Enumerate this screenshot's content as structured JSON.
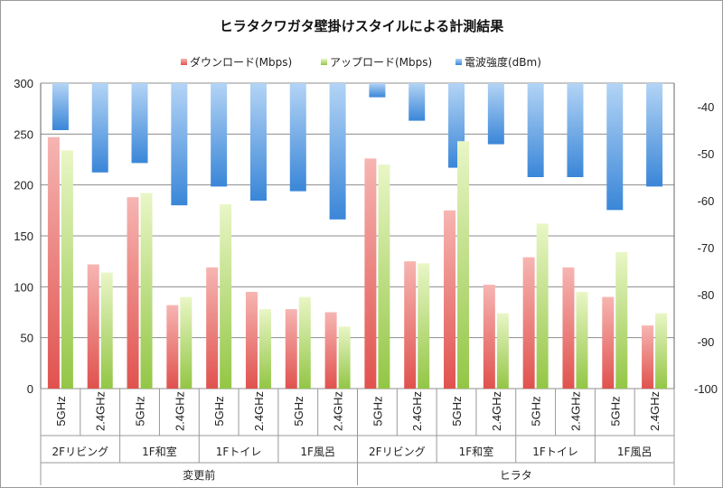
{
  "chart_data": {
    "type": "bar",
    "title": "ヒラタクワガタ壁掛けスタイルによる計測結果",
    "groups": [
      "変更前",
      "ヒラタ"
    ],
    "locations": [
      "2Fリビング",
      "1F和室",
      "1Fトイレ",
      "1F風呂"
    ],
    "bands": [
      "5GHz",
      "2.4GHz"
    ],
    "categories": [
      "5GHz",
      "2.4GHz",
      "5GHz",
      "2.4GHz",
      "5GHz",
      "2.4GHz",
      "5GHz",
      "2.4GHz",
      "5GHz",
      "2.4GHz",
      "5GHz",
      "2.4GHz",
      "5GHz",
      "2.4GHz",
      "5GHz",
      "2.4GHz"
    ],
    "series": [
      {
        "name": "ダウンロード(Mbps)",
        "axis": "left",
        "color": "#e8605c",
        "values": [
          247,
          122,
          188,
          82,
          119,
          95,
          78,
          75,
          226,
          125,
          175,
          102,
          129,
          119,
          90,
          62
        ]
      },
      {
        "name": "アップロード(Mbps)",
        "axis": "left",
        "color": "#a6d35a",
        "values": [
          234,
          114,
          192,
          90,
          181,
          78,
          90,
          61,
          220,
          123,
          243,
          74,
          162,
          95,
          134,
          74
        ]
      },
      {
        "name": "電波強度(dBm)",
        "axis": "right",
        "color": "#3f8fdb",
        "values": [
          -45,
          -54,
          -52,
          -61,
          -57,
          -60,
          -58,
          -64,
          -38,
          -43,
          -53,
          -48,
          -55,
          -55,
          -62,
          -57
        ]
      }
    ],
    "y_left": {
      "min": 0,
      "max": 300,
      "ticks": [
        0,
        50,
        100,
        150,
        200,
        250,
        300
      ]
    },
    "y_right": {
      "min": -100,
      "max": -35,
      "ticks": [
        -40,
        -50,
        -60,
        -70,
        -80,
        -90,
        -100
      ]
    },
    "legend_position": "top-center"
  }
}
